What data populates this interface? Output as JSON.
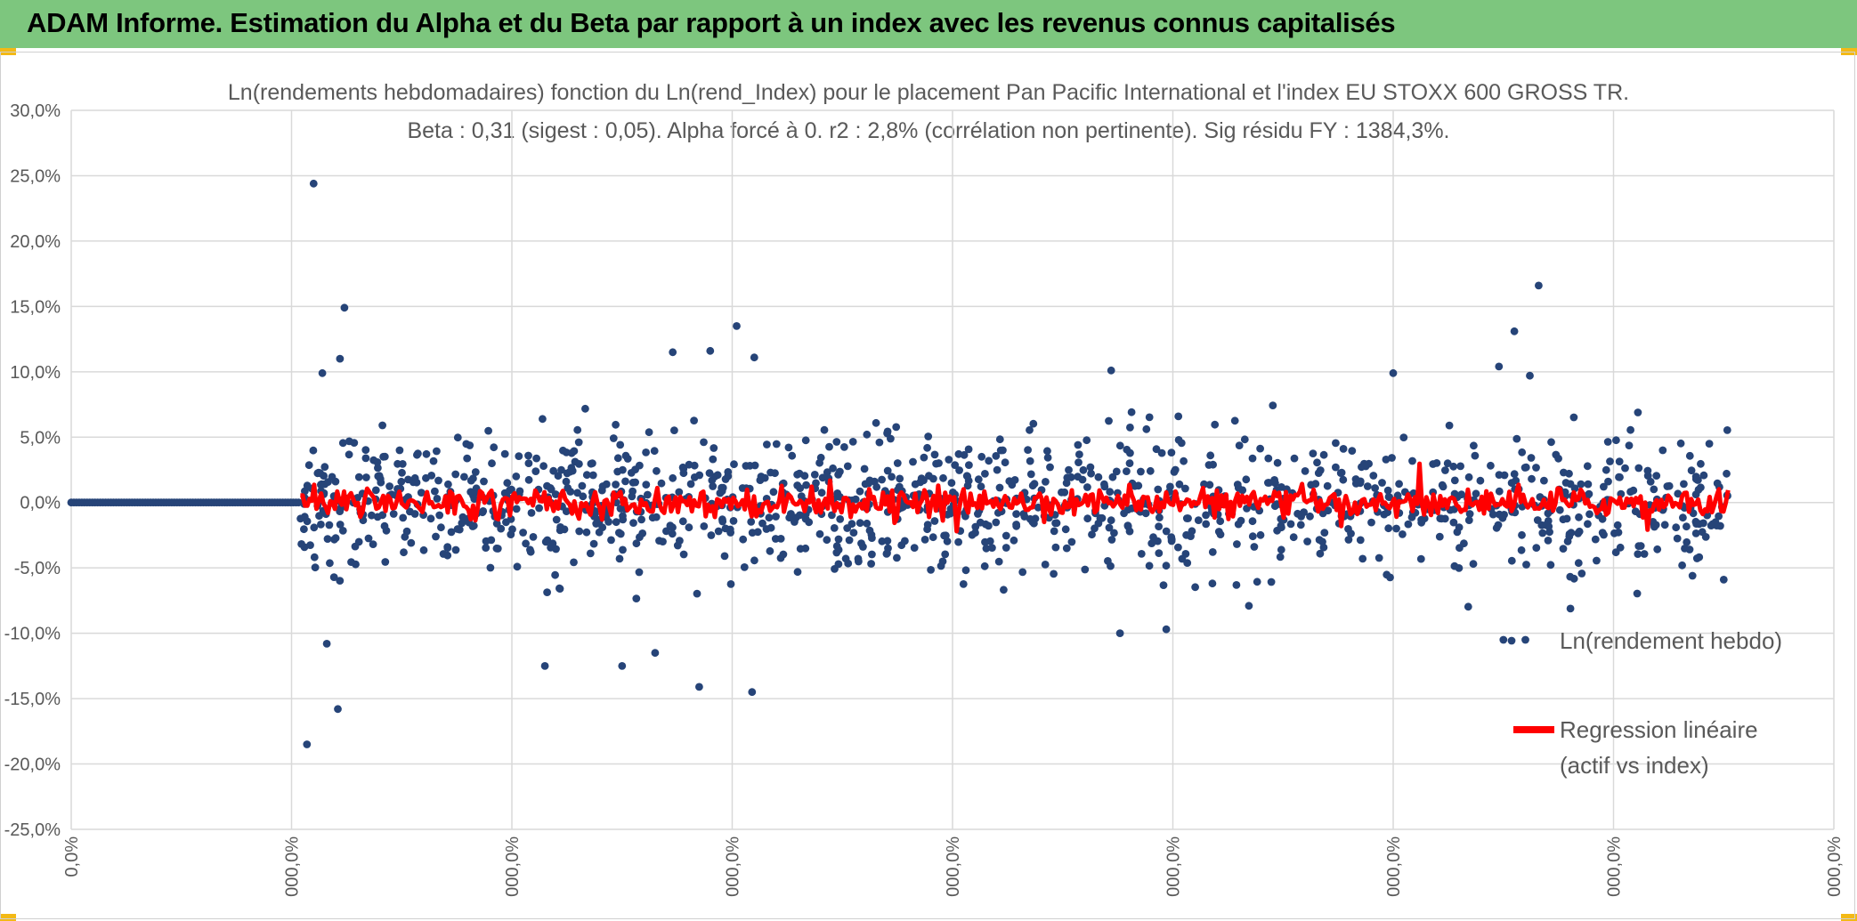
{
  "header": {
    "title": "ADAM Informe. Estimation du Alpha et du Beta par rapport à un index avec les revenus connus capitalisés"
  },
  "colors": {
    "header_bg": "#7dc67e",
    "corner_accent": "#f3b915",
    "scatter_points": "#264478",
    "regression_line": "#ff0000",
    "gridline": "#d9d9d9",
    "axis_text": "#595959"
  },
  "chart_data": {
    "type": "scatter",
    "title_line1": "Ln(rendements hebdomadaires) fonction du Ln(rend_Index) pour le placement Pan Pacific International et l'index EU STOXX 600 GROSS TR.",
    "title_line2": "Beta : 0,31 (sigest : 0,05). Alpha forcé à 0. r2 : 2,8% (corrélation non pertinente). Sig résidu FY : 1384,3%.",
    "ylim": [
      -25,
      30
    ],
    "y_tick_labels": [
      "30,0%",
      "25,0%",
      "20,0%",
      "15,0%",
      "10,0%",
      "5,0%",
      "0,0%",
      "-5,0%",
      "-10,0%",
      "-15,0%",
      "-20,0%",
      "-25,0%"
    ],
    "y_tick_values": [
      30,
      25,
      20,
      15,
      10,
      5,
      0,
      -5,
      -10,
      -15,
      -20,
      -25
    ],
    "x_tick_labels": [
      "0,0%",
      "000,0%",
      "000,0%",
      "000,0%",
      "000,0%",
      "000,0%",
      "000,0%",
      "000,0%",
      "000,0%"
    ],
    "xlim": [
      0,
      8
    ],
    "grid": true,
    "legend_position": "right",
    "series": [
      {
        "name": "Ln(rendement hebdo)",
        "marker": "dot",
        "zero_segment": {
          "x_start": 0,
          "x_end": 1.04,
          "y": 0
        },
        "active_range": [
          1.04,
          7.52
        ],
        "notable_points": [
          {
            "x": 1.1,
            "y": 24.4
          },
          {
            "x": 1.24,
            "y": 14.9
          },
          {
            "x": 1.22,
            "y": 11.0
          },
          {
            "x": 1.14,
            "y": 9.9
          },
          {
            "x": 1.07,
            "y": -18.5
          },
          {
            "x": 1.21,
            "y": -15.8
          },
          {
            "x": 1.16,
            "y": -10.8
          },
          {
            "x": 2.15,
            "y": -12.5
          },
          {
            "x": 2.5,
            "y": -12.5
          },
          {
            "x": 2.65,
            "y": -11.5
          },
          {
            "x": 2.73,
            "y": 11.5
          },
          {
            "x": 2.85,
            "y": -14.1
          },
          {
            "x": 2.9,
            "y": 11.6
          },
          {
            "x": 3.02,
            "y": 13.5
          },
          {
            "x": 3.09,
            "y": -14.5
          },
          {
            "x": 3.1,
            "y": 11.1
          },
          {
            "x": 4.72,
            "y": 10.1
          },
          {
            "x": 4.76,
            "y": -10.0
          },
          {
            "x": 4.97,
            "y": -9.7
          },
          {
            "x": 6.0,
            "y": 9.9
          },
          {
            "x": 6.48,
            "y": 10.4
          },
          {
            "x": 6.55,
            "y": 13.1
          },
          {
            "x": 6.62,
            "y": 9.7
          },
          {
            "x": 6.66,
            "y": 16.6
          },
          {
            "x": 6.5,
            "y": -10.5
          },
          {
            "x": 6.6,
            "y": -10.5
          },
          {
            "x": 7.5,
            "y": -5.9
          }
        ],
        "spread_std": 3.5
      },
      {
        "name": "Regression linéaire (actif vs index)",
        "legend_lines": [
          "Regression linéaire",
          "(actif vs index)"
        ],
        "marker": "line",
        "beta": 0.31,
        "active_range": [
          1.04,
          7.52
        ],
        "spread_std": 0.9
      }
    ]
  }
}
